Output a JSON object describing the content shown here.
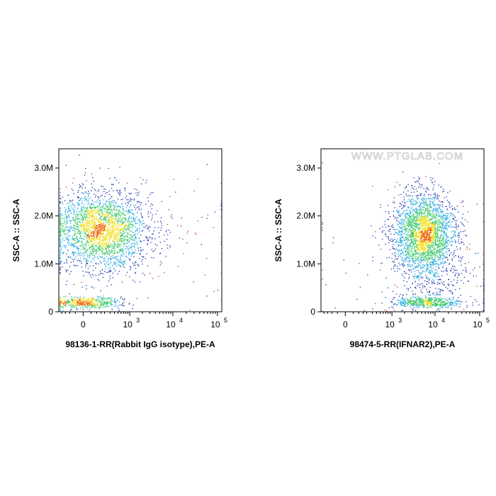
{
  "colors": {
    "density_low": "#1a2ea8",
    "density_mid": "#22a7e0",
    "density_high_1": "#3cc86a",
    "density_high_2": "#f2e01a",
    "density_peak": "#f06a10",
    "sparse": "#c83228"
  },
  "chart_data": [
    {
      "type": "scatter",
      "subtype": "flow-cytometry-density-dot-plot",
      "xlabel": "98136-1-RR(Rabbit IgG isotype),PE-A",
      "ylabel": "SSC-A :: SSC-A",
      "x_scale": "biexponential",
      "x_ticks": [
        {
          "base": "0",
          "exp": ""
        },
        {
          "base": "10",
          "exp": "3"
        },
        {
          "base": "10",
          "exp": "4"
        },
        {
          "base": "10",
          "exp": "5"
        }
      ],
      "y_ticks": [
        "0",
        "1.0M",
        "2.0M",
        "3.0M"
      ],
      "ylim": [
        0,
        3400000
      ],
      "watermark": "",
      "populations": [
        {
          "name": "",
          "x_center": 150,
          "y_center": 1700000,
          "x_spread": 0.55,
          "y_spread": 420000,
          "count": 2600
        },
        {
          "name": "",
          "x_center": 0,
          "y_center": 200000,
          "x_spread": 0.45,
          "y_spread": 60000,
          "count": 500
        },
        {
          "name": "",
          "x_center": 3000,
          "y_center": 1500000,
          "x_spread": 2.2,
          "y_spread": 700000,
          "count": 90
        }
      ]
    },
    {
      "type": "scatter",
      "subtype": "flow-cytometry-density-dot-plot",
      "xlabel": "98474-5-RR(IFNAR2),PE-A",
      "ylabel": "SSC-A :: SSC-A",
      "x_scale": "biexponential",
      "x_ticks": [
        {
          "base": "0",
          "exp": ""
        },
        {
          "base": "10",
          "exp": "3"
        },
        {
          "base": "10",
          "exp": "4"
        },
        {
          "base": "10",
          "exp": "5"
        }
      ],
      "y_ticks": [
        "0",
        "1.0M",
        "2.0M",
        "3.0M"
      ],
      "ylim": [
        0,
        3400000
      ],
      "watermark": "WWW.PTGLAB.COM",
      "populations": [
        {
          "name": "",
          "x_center": 5500,
          "y_center": 1650000,
          "x_spread": 0.35,
          "y_spread": 420000,
          "count": 2600
        },
        {
          "name": "",
          "x_center": 7000,
          "y_center": 200000,
          "x_spread": 0.4,
          "y_spread": 60000,
          "count": 500
        },
        {
          "name": "",
          "x_center": 12000,
          "y_center": 700000,
          "x_spread": 0.45,
          "y_spread": 250000,
          "count": 220
        },
        {
          "name": "",
          "x_center": 3000,
          "y_center": 900000,
          "x_spread": 1.8,
          "y_spread": 700000,
          "count": 60
        }
      ]
    }
  ]
}
